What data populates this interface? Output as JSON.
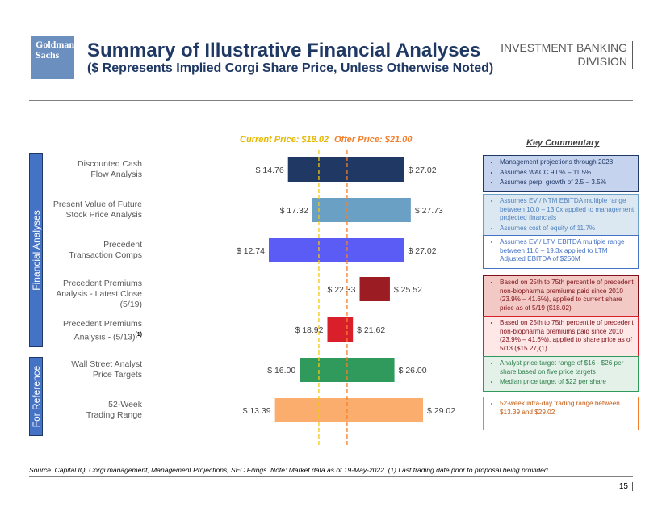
{
  "header": {
    "logo_line1": "Goldman",
    "logo_line2": "Sachs",
    "title": "Summary of Illustrative Financial Analyses",
    "subtitle": "($ Represents Implied Corgi Share Price, Unless Otherwise Noted)",
    "division_line1": "INVESTMENT BANKING",
    "division_line2": "DIVISION"
  },
  "section_labels": {
    "financial": "Financial Analyses",
    "reference": "For Reference"
  },
  "reference_lines": {
    "current_label": "Current Price: $18.02",
    "offer_label": "Offer Price: $21.00",
    "current_value": 18.02,
    "offer_value": 21.0,
    "current_color": "#f2c80f",
    "offer_color": "#f4802d"
  },
  "categories": [
    {
      "line1": "Discounted Cash",
      "line2": "Flow Analysis",
      "note": ""
    },
    {
      "line1": "Present Value of Future",
      "line2": "Stock Price Analysis",
      "note": ""
    },
    {
      "line1": "Precedent",
      "line2": "Transaction Comps",
      "note": ""
    },
    {
      "line1": "Precedent Premiums",
      "line2": "Analysis - Latest Close (5/19)",
      "note": ""
    },
    {
      "line1": "Precedent Premiums",
      "line2": "Analysis - (5/13)",
      "note": "(1)"
    },
    {
      "line1": "Wall Street Analyst",
      "line2": "Price Targets",
      "note": ""
    },
    {
      "line1": "52-Week",
      "line2": "Trading Range",
      "note": ""
    }
  ],
  "chart_data": {
    "type": "bar",
    "orientation": "horizontal-floating",
    "series": [
      {
        "low": 14.76,
        "high": 27.02,
        "low_label": "$ 14.76",
        "high_label": "$ 27.02",
        "color": "#1f3864"
      },
      {
        "low": 17.32,
        "high": 27.73,
        "low_label": "$ 17.32",
        "high_label": "$ 27.73",
        "color": "#6aa0c4"
      },
      {
        "low": 12.74,
        "high": 27.02,
        "low_label": "$ 12.74",
        "high_label": "$ 27.02",
        "color": "#5b5bf5"
      },
      {
        "low": 22.33,
        "high": 25.52,
        "low_label": "$ 22.33",
        "high_label": "$ 25.52",
        "color": "#9b1c23"
      },
      {
        "low": 18.92,
        "high": 21.62,
        "low_label": "$ 18.92",
        "high_label": "$ 21.62",
        "color": "#d9202a"
      },
      {
        "low": 16.0,
        "high": 26.0,
        "low_label": "$ 16.00",
        "high_label": "$ 26.00",
        "color": "#2f9a5c"
      },
      {
        "low": 13.39,
        "high": 29.02,
        "low_label": "$ 13.39",
        "high_label": "$ 29.02",
        "color": "#fbad6d"
      }
    ]
  },
  "commentary": {
    "title": "Key Commentary",
    "boxes": [
      {
        "border": "#1f3864",
        "bg": "#c5d3ee",
        "color": "#1f3864",
        "bullets": [
          "Management projections through 2028",
          "Assumes WACC 9.0% – 11.5%",
          "Assumes perp. growth of 2.5 – 3.5%"
        ]
      },
      {
        "border": "#6aa0c4",
        "bg": "#dbe8f2",
        "color": "#4f81bd",
        "bullets": [
          "Assumes EV / NTM EBITDA multiple range between 10.0 – 13.0x applied to management projected financials",
          "Assumes cost of equity of 11.7%"
        ]
      },
      {
        "border": "#4472c4",
        "bg": "#ffffff",
        "color": "#4472c4",
        "bullets": [
          "Assumes EV / LTM EBITDA multiple range between 11.0 – 19.3x applied to LTM Adjusted EBITDA of $250M"
        ]
      },
      {
        "border": "#7f1119",
        "bg": "#f2c9c4",
        "color": "#7f1119",
        "bullets": [
          "Based on 25th to 75th percentile of precedent non-biopharma premiums paid since 2010 (23.9% – 41.6%), applied to current share price as of 5/19 ($18.02)"
        ]
      },
      {
        "border": "#d9202a",
        "bg": "#fde7e7",
        "color": "#7f1119",
        "bullets": [
          "Based on 25th to 75th percentile of precedent non-biopharma premiums paid since 2010 (23.9% – 41.6%), applied to share price as of 5/13 ($15.27)(1)"
        ]
      },
      {
        "border": "#2f9a5c",
        "bg": "#e3f1e8",
        "color": "#2f7f4c",
        "bullets": [
          "Analyst price target range of $16 - $26 per share based on five price targets",
          "Median price target of $22 per share"
        ]
      },
      {
        "border": "#f4802d",
        "bg": "#ffffff",
        "color": "#c55a11",
        "bullets": [
          "52-week intra-day trading range between $13.39 and $29.02"
        ]
      }
    ]
  },
  "footer": {
    "source": "Source:  Capital IQ, Corgi management, Management Projections, SEC Filings. Note: Market data as of 19-May-2022. (1) Last trading date prior to proposal being provided.",
    "page": "15"
  }
}
